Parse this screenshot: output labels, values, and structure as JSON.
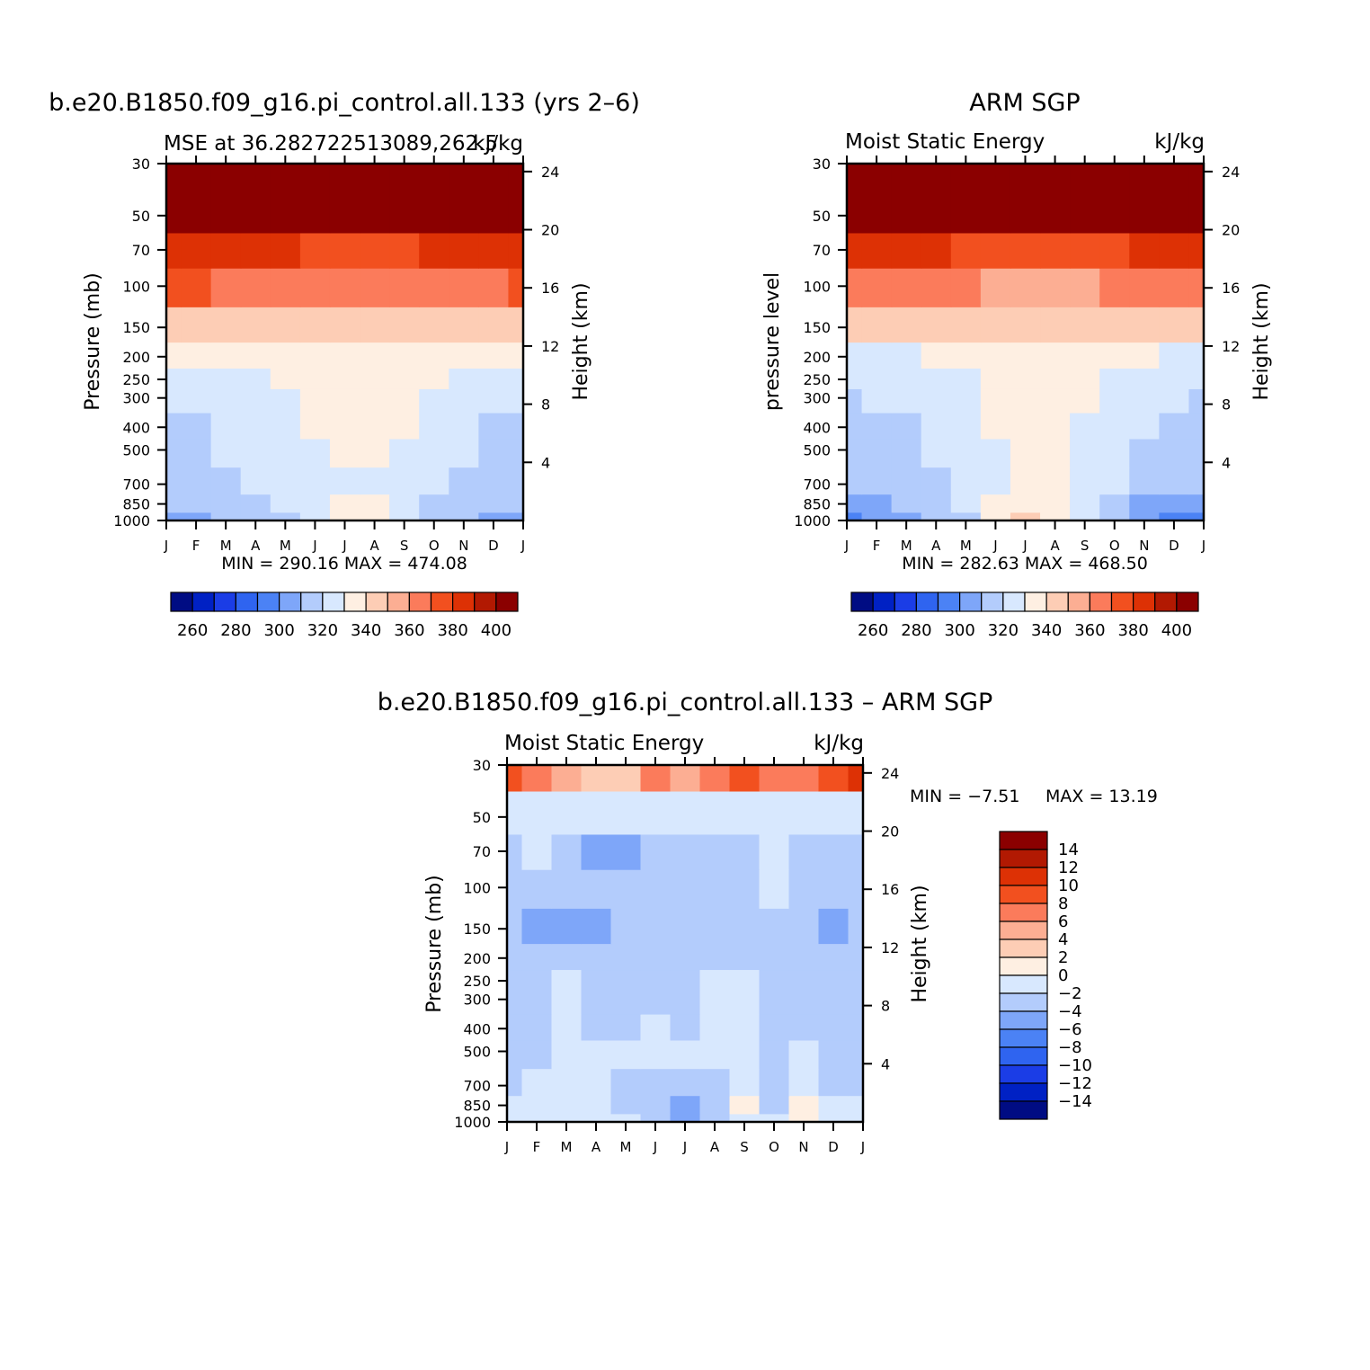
{
  "colors": {
    "cb_abs": [
      "#000c83",
      "#0021c4",
      "#1b3de6",
      "#2f64f0",
      "#4b82f5",
      "#7ea6f9",
      "#b3ccfc",
      "#d8e8fe",
      "#feefe2",
      "#fdcdb5",
      "#fcae93",
      "#fb7b5b",
      "#f2501f",
      "#dd3105",
      "#b21902",
      "#8b0000"
    ],
    "cb_diff": [
      "#000c83",
      "#0021c4",
      "#1b3de6",
      "#2f64f0",
      "#4b82f5",
      "#7ea6f9",
      "#b3ccfc",
      "#d8e8fe",
      "#feefe2",
      "#fdcdb5",
      "#fcae93",
      "#fb7b5b",
      "#f2501f",
      "#dd3105",
      "#b21902",
      "#8b0000"
    ]
  },
  "chart_data": [
    {
      "type": "heatmap",
      "title": "b.e20.B1850.f09_g16.pi_control.all.133 (yrs 2–6)",
      "subtitle_left": "MSE at 36.282722513089,262.5",
      "subtitle_right": "kJ/kg",
      "ylabel_left": "Pressure (mb)",
      "ylabel_right": "Height (km)",
      "x_ticks": [
        "J",
        "F",
        "M",
        "A",
        "M",
        "J",
        "J",
        "A",
        "S",
        "O",
        "N",
        "D",
        "J"
      ],
      "y_ticks": [
        "30",
        "50",
        "70",
        "100",
        "150",
        "200",
        "250",
        "300",
        "400",
        "500",
        "700",
        "850",
        "1000"
      ],
      "y2_ticks": [
        "24",
        "20",
        "16",
        "12",
        "8",
        "4"
      ],
      "stats": "MIN = 290.16 MAX = 474.08",
      "colorbar_labels": [
        "260",
        "280",
        "300",
        "320",
        "340",
        "360",
        "380",
        "400"
      ],
      "contour_levels": [
        250,
        260,
        270,
        280,
        290,
        300,
        310,
        320,
        330,
        340,
        350,
        360,
        370,
        380,
        390,
        400
      ],
      "y_levels_mb": [
        1000,
        850,
        700,
        500,
        400,
        300,
        250,
        200,
        150,
        100,
        70,
        50,
        30
      ],
      "months": [
        "J",
        "F",
        "M",
        "A",
        "M",
        "J",
        "J",
        "A",
        "S",
        "O",
        "N",
        "D",
        "J"
      ],
      "values": [
        [
          303,
          306,
          310,
          313,
          316,
          320,
          330,
          330,
          320,
          314,
          310,
          304,
          303
        ],
        [
          310,
          311,
          314,
          316,
          320,
          322,
          330,
          330,
          320,
          316,
          313,
          310,
          310
        ],
        [
          315,
          316,
          318,
          320,
          322,
          323,
          325,
          325,
          323,
          321,
          318,
          316,
          315
        ],
        [
          317,
          318,
          320,
          322,
          325,
          328,
          330,
          330,
          328,
          325,
          322,
          318,
          317
        ],
        [
          318,
          319,
          320,
          322,
          326,
          330,
          332,
          332,
          330,
          327,
          323,
          319,
          318
        ],
        [
          320,
          321,
          322,
          324,
          328,
          331,
          333,
          333,
          331,
          328,
          325,
          321,
          320
        ],
        [
          321,
          322,
          323,
          325,
          330,
          332,
          334,
          334,
          332,
          330,
          326,
          322,
          321
        ],
        [
          330,
          331,
          332,
          334,
          336,
          338,
          338,
          338,
          338,
          336,
          334,
          332,
          330
        ],
        [
          345,
          344,
          343,
          342,
          342,
          340,
          340,
          340,
          341,
          342,
          343,
          344,
          345
        ],
        [
          372,
          370,
          368,
          366,
          364,
          362,
          360,
          360,
          362,
          364,
          366,
          369,
          371
        ],
        [
          388,
          386,
          384,
          382,
          380,
          378,
          376,
          376,
          378,
          380,
          382,
          385,
          387
        ],
        [
          405,
          405,
          405,
          405,
          405,
          405,
          405,
          405,
          405,
          405,
          405,
          405,
          405
        ],
        [
          440,
          440,
          440,
          440,
          440,
          440,
          440,
          440,
          440,
          440,
          440,
          440,
          440
        ]
      ]
    },
    {
      "type": "heatmap",
      "title": "ARM SGP",
      "subtitle_left": "Moist Static Energy",
      "subtitle_right": "kJ/kg",
      "ylabel_left": "pressure level",
      "ylabel_right": "Height (km)",
      "x_ticks": [
        "J",
        "F",
        "M",
        "A",
        "M",
        "J",
        "J",
        "A",
        "S",
        "O",
        "N",
        "D",
        "J"
      ],
      "y_ticks": [
        "30",
        "50",
        "70",
        "100",
        "150",
        "200",
        "250",
        "300",
        "400",
        "500",
        "700",
        "850",
        "1000"
      ],
      "y2_ticks": [
        "24",
        "20",
        "16",
        "12",
        "8",
        "4"
      ],
      "stats": "MIN = 282.63 MAX = 468.50",
      "colorbar_labels": [
        "260",
        "280",
        "300",
        "320",
        "340",
        "360",
        "380",
        "400"
      ],
      "contour_levels": [
        250,
        260,
        270,
        280,
        290,
        300,
        310,
        320,
        330,
        340,
        350,
        360,
        370,
        380,
        390,
        400
      ],
      "y_levels_mb": [
        1000,
        850,
        700,
        500,
        400,
        300,
        250,
        200,
        150,
        100,
        70,
        50,
        30
      ],
      "months": [
        "J",
        "F",
        "M",
        "A",
        "M",
        "J",
        "J",
        "A",
        "S",
        "O",
        "N",
        "D",
        "J"
      ],
      "values": [
        [
          297,
          300,
          305,
          310,
          318,
          330,
          342,
          335,
          325,
          312,
          305,
          299,
          297
        ],
        [
          305,
          306,
          310,
          315,
          320,
          332,
          338,
          336,
          328,
          316,
          309,
          306,
          305
        ],
        [
          313,
          314,
          316,
          318,
          322,
          327,
          330,
          330,
          326,
          320,
          316,
          313,
          313
        ],
        [
          316,
          317,
          318,
          320,
          324,
          328,
          330,
          330,
          327,
          323,
          319,
          317,
          316
        ],
        [
          318,
          318,
          319,
          321,
          325,
          330,
          332,
          332,
          329,
          325,
          321,
          318,
          318
        ],
        [
          319,
          320,
          321,
          323,
          327,
          331,
          334,
          334,
          331,
          327,
          323,
          320,
          319
        ],
        [
          320,
          321,
          322,
          324,
          329,
          333,
          336,
          335,
          333,
          329,
          325,
          321,
          320
        ],
        [
          325,
          326,
          328,
          330,
          333,
          336,
          338,
          337,
          336,
          333,
          330,
          327,
          325
        ],
        [
          343,
          342,
          342,
          341,
          341,
          340,
          340,
          340,
          341,
          341,
          342,
          342,
          343
        ],
        [
          368,
          366,
          364,
          362,
          360,
          358,
          356,
          356,
          358,
          361,
          363,
          366,
          368
        ],
        [
          386,
          384,
          382,
          380,
          378,
          376,
          374,
          374,
          376,
          378,
          380,
          383,
          385
        ],
        [
          405,
          405,
          405,
          405,
          405,
          405,
          405,
          405,
          405,
          405,
          405,
          405,
          405
        ],
        [
          440,
          440,
          440,
          440,
          440,
          440,
          440,
          440,
          440,
          440,
          440,
          440,
          440
        ]
      ]
    },
    {
      "type": "heatmap",
      "title": "b.e20.B1850.f09_g16.pi_control.all.133 – ARM SGP",
      "subtitle_left": "Moist Static Energy",
      "subtitle_right": "kJ/kg",
      "ylabel_left": "Pressure (mb)",
      "ylabel_right": "Height (km)",
      "x_ticks": [
        "J",
        "F",
        "M",
        "A",
        "M",
        "J",
        "J",
        "A",
        "S",
        "O",
        "N",
        "D",
        "J"
      ],
      "y_ticks": [
        "30",
        "50",
        "70",
        "100",
        "150",
        "200",
        "250",
        "300",
        "400",
        "500",
        "700",
        "850",
        "1000"
      ],
      "y2_ticks": [
        "24",
        "20",
        "16",
        "12",
        "8",
        "4"
      ],
      "stats_min": "MIN =  −7.51",
      "stats_max": "MAX =   13.19",
      "colorbar_labels": [
        "14",
        "12",
        "10",
        "8",
        "6",
        "4",
        "2",
        "0",
        "−2",
        "−4",
        "−6",
        "−8",
        "−10",
        "−12",
        "−14"
      ],
      "contour_levels": [
        -16,
        -14,
        -12,
        -10,
        -8,
        -6,
        -4,
        -2,
        0,
        2,
        4,
        6,
        8,
        10,
        12,
        14
      ],
      "y_levels_mb": [
        1000,
        850,
        700,
        500,
        400,
        300,
        250,
        200,
        150,
        100,
        70,
        50,
        30
      ],
      "months": [
        "J",
        "F",
        "M",
        "A",
        "M",
        "J",
        "J",
        "A",
        "S",
        "O",
        "N",
        "D",
        "J"
      ],
      "values": [
        [
          -1.5,
          -1,
          -1,
          -1.5,
          -2,
          -2.5,
          -5,
          -3,
          -0.5,
          -2,
          0.5,
          -1.5,
          -1.5
        ],
        [
          -2,
          -1.5,
          -1,
          -1.5,
          -2.5,
          -3.5,
          -5.5,
          -3.5,
          1,
          -3,
          0.5,
          -1.5,
          -2
        ],
        [
          -3,
          -2,
          -1,
          -1.5,
          -2.5,
          -3,
          -2.5,
          -2.5,
          -1,
          -2.5,
          -1.5,
          -2.5,
          -3
        ],
        [
          -3,
          -2.5,
          -1,
          -2,
          -1.5,
          -1.5,
          -1.5,
          -2,
          -1,
          -3,
          -2,
          -3,
          -3
        ],
        [
          -3,
          -2.5,
          -1,
          -2.5,
          -2.5,
          -2,
          -2.5,
          -2,
          -1,
          -3,
          -2.5,
          -3,
          -3
        ],
        [
          -3,
          -2.5,
          -1,
          -2.5,
          -3,
          -3,
          -3,
          -1.5,
          -1,
          -2.5,
          -3,
          -3,
          -3
        ],
        [
          -3,
          -2.5,
          -1.5,
          -3,
          -3,
          -3,
          -3,
          -2,
          -1.5,
          -2.5,
          -3,
          -3.5,
          -3
        ],
        [
          -4,
          -4,
          -3.5,
          -4,
          -4,
          -3.5,
          -3,
          -3,
          -3,
          -3,
          -3.5,
          -4,
          -4
        ],
        [
          -4,
          -4.5,
          -4.5,
          -5,
          -4,
          -3,
          -3,
          -3,
          -3,
          -3,
          -4,
          -4.5,
          -4
        ],
        [
          -3,
          -3,
          -3,
          -3.5,
          -4,
          -3,
          -3,
          -3,
          -2.5,
          -1.5,
          -3,
          -3,
          -3
        ],
        [
          -2.5,
          -2,
          -2.5,
          -4.5,
          -4.5,
          -4,
          -3,
          -3,
          -3,
          -1.5,
          -3,
          -2.5,
          -2.5
        ],
        [
          -1.5,
          -1.5,
          -1.5,
          -2,
          -2,
          -1.5,
          -1.5,
          -1.5,
          -1.5,
          -1.5,
          -1.5,
          -1.5,
          -1.5
        ],
        [
          8,
          6,
          4,
          2,
          2,
          6,
          4,
          6,
          8,
          6,
          6,
          8,
          10
        ]
      ]
    }
  ]
}
